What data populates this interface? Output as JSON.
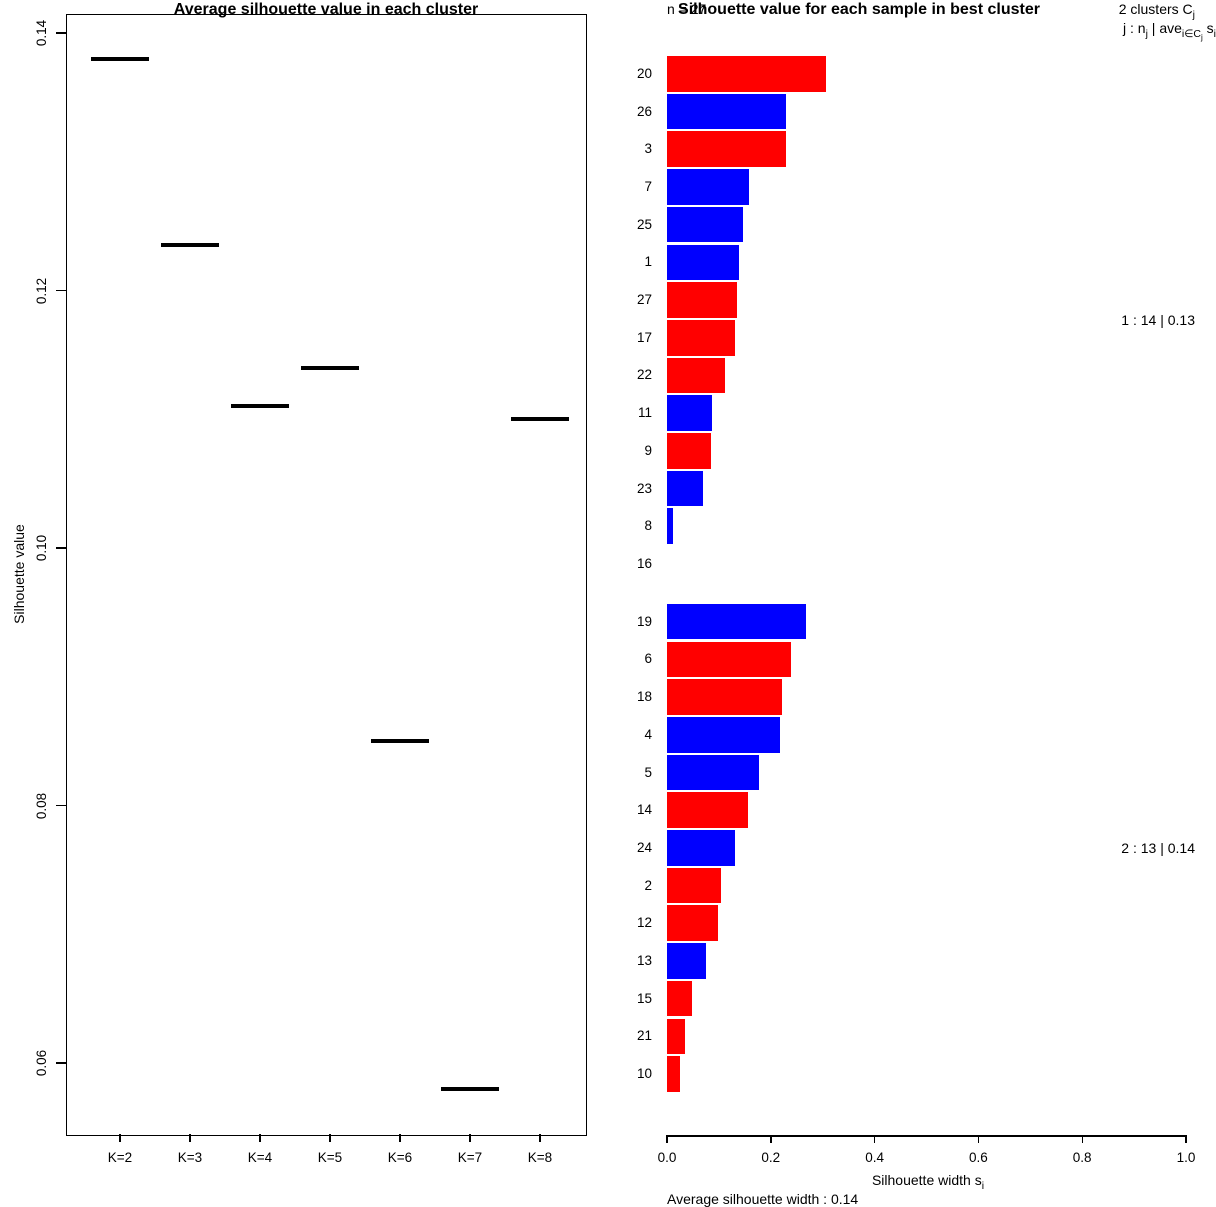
{
  "figure": {
    "background": "#FFFFFF",
    "foreground": "#000000"
  },
  "chart_data": [
    {
      "id": "average-silhouette-by-k",
      "type": "segments",
      "title": "Average silhouette value in each cluster",
      "ylabel": "Silhouette value",
      "categories": [
        "K=2",
        "K=3",
        "K=4",
        "K=5",
        "K=6",
        "K=7",
        "K=8"
      ],
      "values": [
        0.138,
        0.1235,
        0.111,
        0.114,
        0.085,
        0.058,
        0.11
      ],
      "ylim": [
        0.054,
        0.142
      ],
      "yticks": [
        0.14,
        0.12,
        0.1,
        0.08,
        0.06
      ],
      "ytick_labels": [
        "0.14",
        "0.12",
        "0.10",
        "0.08",
        "0.06"
      ],
      "grid": false,
      "series_color": "#000000"
    },
    {
      "id": "silhouette-per-sample",
      "type": "bar",
      "orientation": "horizontal",
      "title": "Silhouette value for each sample in best cluster",
      "n_label": "n = 27",
      "xlim": [
        0,
        1
      ],
      "xticks": [
        0.0,
        0.2,
        0.4,
        0.6,
        0.8,
        1.0
      ],
      "xtick_labels": [
        "0.0",
        "0.2",
        "0.4",
        "0.6",
        "0.8",
        "1.0"
      ],
      "xlabel_parts": [
        {
          "t": "Silhouette width s"
        },
        {
          "t": "i",
          "sub": 1
        }
      ],
      "bar_colors": {
        "red": "#FF0000",
        "blue": "#0000FF"
      },
      "corner_legend": {
        "line1_parts": [
          {
            "t": "2 clusters C"
          },
          {
            "t": "j",
            "sub": 1
          }
        ],
        "line2_parts": [
          {
            "t": "j : n"
          },
          {
            "t": "j",
            "sub": 1
          },
          {
            "t": " | ave"
          },
          {
            "t": "i∈C",
            "sub": 1
          },
          {
            "t": "j",
            "sub": 2
          },
          {
            "t": " s"
          },
          {
            "t": "i",
            "sub": 1
          }
        ]
      },
      "clusters": [
        {
          "annotation": "1 :  14  |  0.13",
          "samples": [
            {
              "label": "20",
              "value": 0.306,
              "color": "red"
            },
            {
              "label": "26",
              "value": 0.229,
              "color": "blue"
            },
            {
              "label": "3",
              "value": 0.229,
              "color": "red"
            },
            {
              "label": "7",
              "value": 0.158,
              "color": "blue"
            },
            {
              "label": "25",
              "value": 0.146,
              "color": "blue"
            },
            {
              "label": "1",
              "value": 0.139,
              "color": "blue"
            },
            {
              "label": "27",
              "value": 0.135,
              "color": "red"
            },
            {
              "label": "17",
              "value": 0.131,
              "color": "red"
            },
            {
              "label": "22",
              "value": 0.112,
              "color": "red"
            },
            {
              "label": "11",
              "value": 0.087,
              "color": "blue"
            },
            {
              "label": "9",
              "value": 0.085,
              "color": "red"
            },
            {
              "label": "23",
              "value": 0.069,
              "color": "blue"
            },
            {
              "label": "8",
              "value": 0.012,
              "color": "blue"
            },
            {
              "label": "16",
              "value": 0.0,
              "color": "blue"
            }
          ]
        },
        {
          "annotation": "2 :  13  |  0.14",
          "samples": [
            {
              "label": "19",
              "value": 0.268,
              "color": "blue"
            },
            {
              "label": "6",
              "value": 0.239,
              "color": "red"
            },
            {
              "label": "18",
              "value": 0.222,
              "color": "red"
            },
            {
              "label": "4",
              "value": 0.218,
              "color": "blue"
            },
            {
              "label": "5",
              "value": 0.177,
              "color": "blue"
            },
            {
              "label": "14",
              "value": 0.156,
              "color": "red"
            },
            {
              "label": "24",
              "value": 0.131,
              "color": "blue"
            },
            {
              "label": "2",
              "value": 0.104,
              "color": "red"
            },
            {
              "label": "12",
              "value": 0.098,
              "color": "red"
            },
            {
              "label": "13",
              "value": 0.075,
              "color": "blue"
            },
            {
              "label": "15",
              "value": 0.048,
              "color": "red"
            },
            {
              "label": "21",
              "value": 0.035,
              "color": "red"
            },
            {
              "label": "10",
              "value": 0.025,
              "color": "red"
            }
          ]
        }
      ],
      "subtitle": "Average silhouette width : 0.14",
      "grid": false
    }
  ]
}
